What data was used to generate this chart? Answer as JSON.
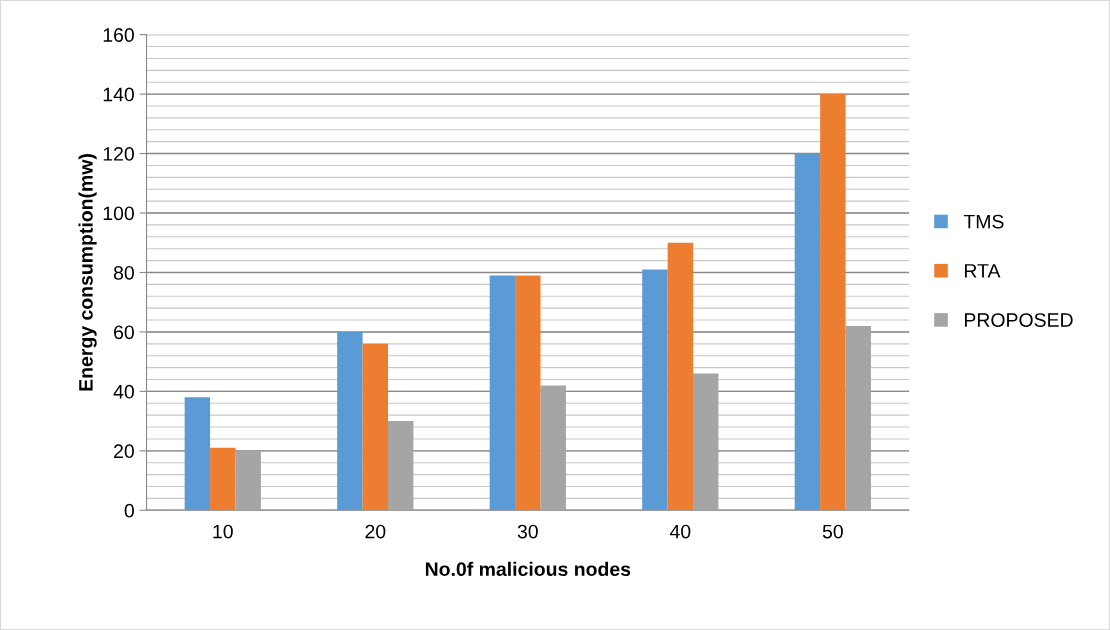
{
  "chart_data": {
    "type": "bar",
    "xlabel": "No.0f malicious nodes",
    "ylabel": "Energy consumption(mw)",
    "categories": [
      "10",
      "20",
      "30",
      "40",
      "50"
    ],
    "series": [
      {
        "name": "TMS",
        "color": "#5b9bd5",
        "values": [
          38,
          60,
          79,
          81,
          120
        ]
      },
      {
        "name": "RTA",
        "color": "#ed7d31",
        "values": [
          21,
          56,
          79,
          90,
          140
        ]
      },
      {
        "name": "PROPOSED",
        "color": "#a5a5a5",
        "values": [
          20,
          30,
          42,
          46,
          62
        ]
      }
    ],
    "ylim": [
      0,
      160
    ],
    "yticks": [
      0,
      20,
      40,
      60,
      80,
      100,
      120,
      140,
      160
    ],
    "grid": "y",
    "legend": "right"
  }
}
